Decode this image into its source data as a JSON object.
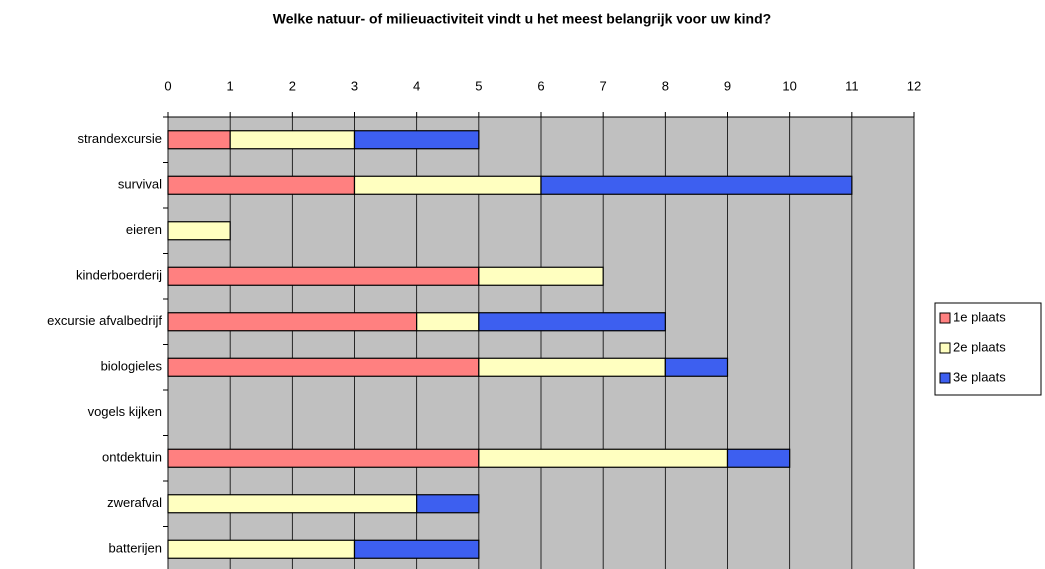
{
  "chart_data": {
    "type": "stacked-barh",
    "title": "Welke natuur- of milieuactiviteit vindt u het meest belangrijk voor uw kind?",
    "categories": [
      "strandexcursie",
      "survival",
      "eieren",
      "kinderboerderij",
      "excursie afvalbedrijf",
      "biologieles",
      "vogels kijken",
      "ontdektuin",
      "zwerafval",
      "batterijen"
    ],
    "series": [
      {
        "name": "1e plaats",
        "color": "#ff8080",
        "values": [
          1,
          3,
          0,
          5,
          4,
          5,
          0,
          5,
          0,
          0
        ]
      },
      {
        "name": "2e plaats",
        "color": "#ffffc0",
        "values": [
          2,
          3,
          1,
          2,
          1,
          3,
          0,
          4,
          4,
          3
        ]
      },
      {
        "name": "3e plaats",
        "color": "#3d5ff0",
        "values": [
          2,
          5,
          0,
          0,
          3,
          1,
          0,
          1,
          1,
          2
        ]
      }
    ],
    "xlim": [
      0,
      12
    ],
    "xticks": [
      0,
      1,
      2,
      3,
      4,
      5,
      6,
      7,
      8,
      9,
      10,
      11,
      12
    ],
    "grid": true,
    "legend": "right"
  }
}
